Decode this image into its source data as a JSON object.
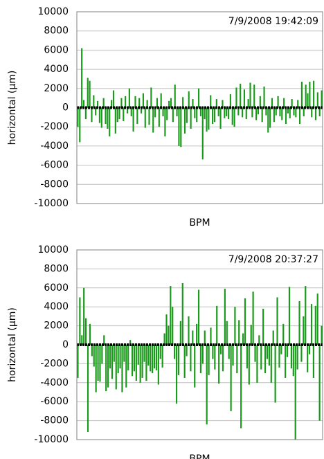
{
  "chart_data": [
    {
      "type": "bar",
      "annotation": "7/9/2008 19:42:09",
      "xlabel": "BPM",
      "ylabel": "horizontal (μm)",
      "color": "#1a9a1a",
      "grid": true,
      "ylim": [
        -10000,
        10000
      ],
      "yticks": [
        -10000,
        -8000,
        -6000,
        -4000,
        -2000,
        0,
        2000,
        4000,
        6000,
        8000,
        10000
      ],
      "values": [
        -2000,
        -3600,
        6200,
        800,
        -1200,
        3100,
        2800,
        -1500,
        1300,
        -800,
        700,
        -1600,
        -2100,
        1000,
        -1700,
        -2200,
        -3000,
        800,
        1800,
        -2700,
        -1500,
        -1200,
        1000,
        -1400,
        1200,
        -600,
        2000,
        -900,
        -2500,
        1200,
        -1700,
        1000,
        -600,
        1500,
        -2100,
        800,
        -1800,
        2100,
        -2600,
        -1000,
        1000,
        -2000,
        1500,
        -900,
        -3000,
        -1300,
        700,
        1000,
        -1500,
        2400,
        -900,
        -4000,
        -4100,
        1100,
        -2700,
        -1600,
        1700,
        -2200,
        900,
        -1100,
        -1500,
        2000,
        -900,
        -5400,
        -1200,
        -2500,
        -2300,
        1300,
        -1700,
        -1500,
        900,
        -900,
        -2200,
        800,
        -1100,
        -900,
        -1200,
        1400,
        -1800,
        -2000,
        2100,
        -800,
        2500,
        -1000,
        1900,
        -1200,
        900,
        2600,
        -1000,
        2400,
        -1300,
        -700,
        1200,
        -1500,
        2200,
        -800,
        -2600,
        -2100,
        1000,
        -1500,
        -800,
        1200,
        -900,
        -1300,
        1000,
        -1700,
        -600,
        -1100,
        900,
        -800,
        -1000,
        800,
        -1700,
        2700,
        -900,
        2400,
        1500,
        2700,
        -1000,
        2800,
        -1300,
        1600,
        -900,
        1800
      ]
    },
    {
      "type": "bar",
      "annotation": "7/9/2008 20:37:27",
      "xlabel": "BPM",
      "ylabel": "horizontal (μm)",
      "color": "#1a9a1a",
      "grid": true,
      "ylim": [
        -10000,
        10000
      ],
      "yticks": [
        -10000,
        -8000,
        -6000,
        -4000,
        -2000,
        0,
        2000,
        4000,
        6000,
        8000,
        10000
      ],
      "values": [
        -3500,
        5000,
        1000,
        6000,
        2800,
        -9200,
        2200,
        -1200,
        -2300,
        -5000,
        -3800,
        -3900,
        -2000,
        1000,
        -4900,
        -4500,
        -2500,
        -3600,
        -1800,
        -4700,
        -3000,
        -2500,
        -5000,
        -1800,
        -4500,
        -2700,
        500,
        -3300,
        -2800,
        -3800,
        -2100,
        -4000,
        -3500,
        -1800,
        -3800,
        -2200,
        -2800,
        -3000,
        -2500,
        -2700,
        -4200,
        -1500,
        -2400,
        1200,
        3200,
        2000,
        6200,
        4000,
        -1500,
        -6200,
        -3200,
        2500,
        6500,
        -3500,
        -1200,
        3000,
        -2800,
        1500,
        -4500,
        2200,
        5800,
        -3000,
        -2000,
        1500,
        -8400,
        -3200,
        1800,
        -1500,
        -2600,
        4100,
        -4100,
        -1000,
        -2800,
        5900,
        2500,
        -1500,
        -7000,
        -2200,
        4000,
        -3000,
        2600,
        -8800,
        1200,
        4900,
        -2500,
        -4200,
        2100,
        5600,
        -1800,
        -4000,
        1000,
        -2600,
        3800,
        -3000,
        -1500,
        -2200,
        -4000,
        1500,
        -6100,
        5000,
        -2400,
        -1000,
        2200,
        -3500,
        -1300,
        6100,
        -2500,
        -3300,
        -10000,
        -2600,
        4600,
        -1800,
        3000,
        6200,
        -2900,
        -1000,
        4300,
        -3500,
        4100,
        5400,
        -8000,
        2000
      ]
    }
  ]
}
